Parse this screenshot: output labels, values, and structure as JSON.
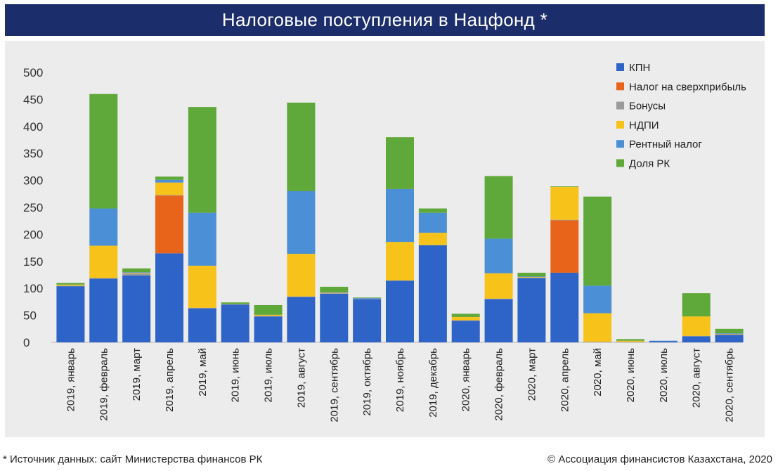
{
  "title": "Налоговые поступления в Нацфонд *",
  "footer": {
    "source": "* Источник данных: сайт Министерства финансов РК",
    "copyright": "© Ассоциация финансистов Казахстана, 2020"
  },
  "colors": {
    "КПН": "#2e63c7",
    "Налог на сверхприбыль": "#e8641a",
    "Бонусы": "#9a9a9a",
    "НДПИ": "#f7c21a",
    "Рентный налог": "#4b8fd6",
    "Доля РК": "#5fa83a",
    "title_bg": "#1c2d6b",
    "plot_bg": "#ececec"
  },
  "chart_data": {
    "type": "bar",
    "stacked": true,
    "title": "Налоговые поступления в Нацфонд *",
    "xlabel": "",
    "ylabel": "",
    "ylim": [
      0,
      500
    ],
    "yticks": [
      0,
      50,
      100,
      150,
      200,
      250,
      300,
      350,
      400,
      450,
      500
    ],
    "grid": false,
    "legend_position": "top-right",
    "categories": [
      "2019, январь",
      "2019, февраль",
      "2019, март",
      "2019, апрель",
      "2019, май",
      "2019, июнь",
      "2019, июль",
      "2019, август",
      "2019, сентябрь",
      "2019, октябрь",
      "2019, ноябрь",
      "2019, декабрь",
      "2020, январь",
      "2020, февраль",
      "2020, март",
      "2020, апрель",
      "2020, май",
      "2020, июнь",
      "2020, июль",
      "2020, август",
      "2020, сентябрь"
    ],
    "series": [
      {
        "name": "КПН",
        "values": [
          104,
          118,
          124,
          165,
          63,
          70,
          48,
          84,
          90,
          80,
          114,
          180,
          40,
          80,
          119,
          129,
          0,
          0,
          2,
          11,
          14
        ]
      },
      {
        "name": "Налог на сверхприбыль",
        "values": [
          0,
          0,
          0,
          107,
          0,
          0,
          0,
          0,
          0,
          0,
          0,
          0,
          0,
          0,
          0,
          97,
          0,
          0,
          0,
          0,
          0
        ]
      },
      {
        "name": "Бонусы",
        "values": [
          1,
          1,
          4,
          1,
          1,
          1,
          1,
          1,
          1,
          1,
          1,
          0,
          1,
          1,
          1,
          1,
          1,
          1,
          0,
          1,
          1
        ]
      },
      {
        "name": "НДПИ",
        "values": [
          2,
          60,
          1,
          23,
          78,
          0,
          2,
          79,
          1,
          0,
          71,
          23,
          6,
          47,
          1,
          61,
          53,
          2,
          0,
          36,
          1
        ]
      },
      {
        "name": "Рентный налог",
        "values": [
          0,
          69,
          1,
          5,
          98,
          0,
          0,
          116,
          1,
          1,
          98,
          37,
          0,
          64,
          1,
          0,
          51,
          0,
          1,
          0,
          1
        ]
      },
      {
        "name": "Доля РК",
        "values": [
          3,
          212,
          7,
          6,
          196,
          3,
          18,
          164,
          10,
          1,
          96,
          8,
          6,
          116,
          7,
          1,
          165,
          3,
          0,
          43,
          8
        ]
      }
    ],
    "legend": [
      "КПН",
      "Налог на сверхприбыль",
      "Бонусы",
      "НДПИ",
      "Рентный налог",
      "Доля РК"
    ]
  }
}
